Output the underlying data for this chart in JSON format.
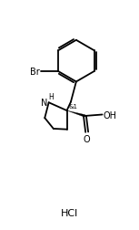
{
  "background": "#ffffff",
  "line_color": "#000000",
  "line_width": 1.3,
  "font_size_label": 7.0,
  "font_size_small": 5.5,
  "hcl_label": "HCl",
  "nh_label": "H",
  "n_label": "N",
  "br_label": "Br",
  "oh_label": "OH",
  "o_label": "O",
  "stereo_label": "&1",
  "xlim": [
    0,
    10
  ],
  "ylim": [
    0,
    17
  ]
}
